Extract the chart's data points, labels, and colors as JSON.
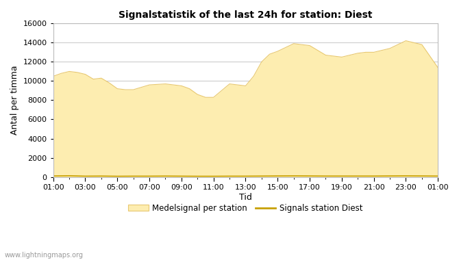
{
  "title": "Signalstatistik of the last 24h for station: Diest",
  "xlabel": "Tid",
  "ylabel": "Antal per timma",
  "fill_color": "#FDEDB0",
  "fill_edge_color": "#E8C870",
  "line_color": "#C8A000",
  "background_color": "#ffffff",
  "grid_color": "#cccccc",
  "ylim": [
    0,
    16000
  ],
  "yticks": [
    0,
    2000,
    4000,
    6000,
    8000,
    10000,
    12000,
    14000,
    16000
  ],
  "xtick_labels": [
    "01:00",
    "03:00",
    "05:00",
    "07:00",
    "09:00",
    "11:00",
    "13:00",
    "15:00",
    "17:00",
    "19:00",
    "21:00",
    "23:00",
    "01:00"
  ],
  "legend_fill_label": "Medelsignal per station",
  "legend_line_label": "Signals station Diest",
  "watermark": "www.lightningmaps.org",
  "x_values": [
    0,
    0.5,
    1,
    1.5,
    2,
    2.5,
    3,
    3.5,
    4,
    4.5,
    5,
    5.5,
    6,
    6.5,
    7,
    7.5,
    8,
    8.5,
    9,
    9.5,
    10,
    10.5,
    11,
    11.5,
    12,
    12.5,
    13,
    13.5,
    14,
    14.5,
    15,
    15.5,
    16,
    16.5,
    17,
    17.5,
    18,
    18.5,
    19,
    19.5,
    20,
    20.5,
    21,
    21.5,
    22,
    22.5,
    23,
    23.5,
    24
  ],
  "y_fill": [
    10500,
    10800,
    11000,
    10900,
    10700,
    10200,
    10300,
    9800,
    9200,
    9100,
    9100,
    9350,
    9600,
    9650,
    9700,
    9600,
    9500,
    9200,
    8600,
    8300,
    8300,
    9000,
    9700,
    9600,
    9500,
    10500,
    12000,
    12800,
    13100,
    13500,
    13900,
    13800,
    13700,
    13200,
    12700,
    12600,
    12500,
    12700,
    12900,
    13000,
    13000,
    13200,
    13400,
    13800,
    14200,
    14000,
    13800,
    12600,
    11400
  ],
  "y_line": [
    100,
    110,
    120,
    100,
    80,
    85,
    90,
    80,
    70,
    75,
    80,
    80,
    80,
    85,
    90,
    85,
    80,
    75,
    70,
    70,
    70,
    75,
    80,
    80,
    80,
    85,
    90,
    95,
    100,
    105,
    110,
    105,
    100,
    95,
    90,
    90,
    90,
    90,
    90,
    90,
    90,
    95,
    100,
    105,
    110,
    105,
    100,
    95,
    90
  ]
}
